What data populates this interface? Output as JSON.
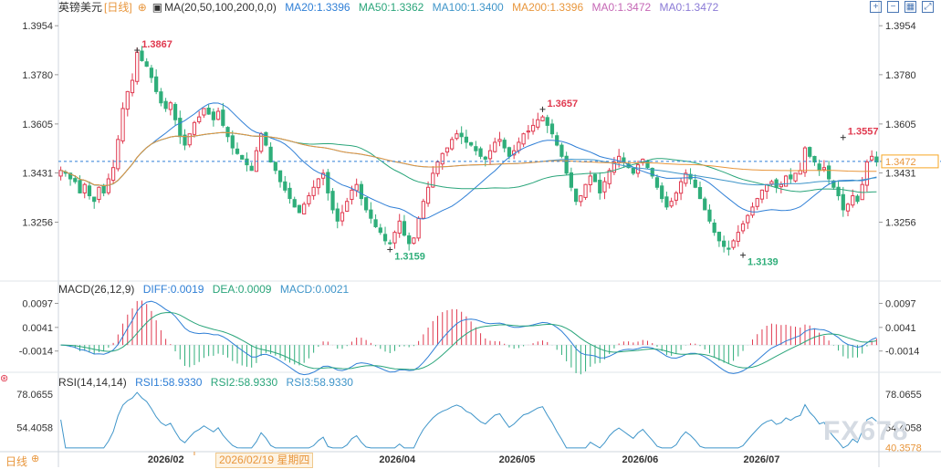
{
  "header": {
    "symbol": "英镑美元",
    "period": "[日线]",
    "ma_label": "MA(20,50,100,200,0,0)",
    "ma_values": [
      {
        "text": "MA20:1.3396",
        "color": "#2f7fd6"
      },
      {
        "text": "MA50:1.3362",
        "color": "#2aa57a"
      },
      {
        "text": "MA100:1.3400",
        "color": "#3f95c9"
      },
      {
        "text": "MA200:1.3396",
        "color": "#e8963c"
      },
      {
        "text": "MA0:1.3472",
        "color": "#c567b5"
      },
      {
        "text": "MA0:1.3472",
        "color": "#8a7ad6"
      }
    ]
  },
  "macd_header": {
    "label": "MACD(26,12,9)",
    "diff": "DIFF:0.0019",
    "dea": "DEA:0.0009",
    "macd": "MACD:0.0021"
  },
  "rsi_header": {
    "label": "RSI(14,14,14)",
    "rsi1": "RSI1:58.9330",
    "rsi2": "RSI2:58.9330",
    "rsi3": "RSI3:58.9330"
  },
  "footer": {
    "period_tab": "日线",
    "crosshair_date": "2026/02/19 星期四",
    "x_labels": [
      "2026/02",
      "2026/04",
      "2026/05",
      "2026/06",
      "2026/07"
    ]
  },
  "watermark": "FX678",
  "colors": {
    "up": "#e0394f",
    "down": "#2fae7a",
    "ma20": "#2f7fd6",
    "ma50": "#2aa57a",
    "ma100": "#3f95c9",
    "ma200": "#e8963c",
    "price_tag": "#f6a623"
  },
  "chart_data": [
    {
      "type": "candlestick",
      "title": "英镑美元 [日线]",
      "y_ticks": [
        1.3954,
        1.378,
        1.3605,
        1.3431,
        1.3256
      ],
      "y_tick_labels": [
        "1.3954",
        "1.3780",
        "1.3605",
        "1.3431",
        "1.3256"
      ],
      "ylim": [
        1.306,
        1.4
      ],
      "last_price": 1.3472,
      "last_price_label": "1.3472",
      "annotations": [
        {
          "label": "1.3867",
          "value": 1.3867,
          "kind": "high"
        },
        {
          "label": "1.3159",
          "value": 1.3159,
          "kind": "low"
        },
        {
          "label": "1.3657",
          "value": 1.3657,
          "kind": "high"
        },
        {
          "label": "1.3139",
          "value": 1.3139,
          "kind": "low"
        },
        {
          "label": "1.3557",
          "value": 1.3557,
          "kind": "high"
        }
      ],
      "close_series": [
        1.344,
        1.343,
        1.341,
        1.34,
        1.336,
        1.339,
        1.335,
        1.333,
        1.338,
        1.336,
        1.341,
        1.345,
        1.355,
        1.366,
        1.372,
        1.376,
        1.386,
        1.383,
        1.381,
        1.377,
        1.372,
        1.368,
        1.366,
        1.368,
        1.362,
        1.356,
        1.353,
        1.357,
        1.361,
        1.363,
        1.366,
        1.364,
        1.362,
        1.365,
        1.36,
        1.356,
        1.352,
        1.35,
        1.348,
        1.346,
        1.344,
        1.351,
        1.357,
        1.353,
        1.347,
        1.344,
        1.34,
        1.337,
        1.334,
        1.331,
        1.329,
        1.332,
        1.335,
        1.338,
        1.341,
        1.343,
        1.336,
        1.33,
        1.326,
        1.329,
        1.333,
        1.337,
        1.339,
        1.334,
        1.33,
        1.327,
        1.324,
        1.322,
        1.319,
        1.318,
        1.322,
        1.326,
        1.321,
        1.318,
        1.32,
        1.327,
        1.333,
        1.338,
        1.343,
        1.347,
        1.35,
        1.352,
        1.355,
        1.357,
        1.356,
        1.354,
        1.353,
        1.351,
        1.349,
        1.348,
        1.351,
        1.354,
        1.355,
        1.352,
        1.349,
        1.351,
        1.354,
        1.357,
        1.358,
        1.36,
        1.362,
        1.363,
        1.36,
        1.357,
        1.353,
        1.349,
        1.343,
        1.338,
        1.333,
        1.335,
        1.339,
        1.342,
        1.34,
        1.336,
        1.34,
        1.344,
        1.347,
        1.349,
        1.347,
        1.345,
        1.343,
        1.346,
        1.348,
        1.345,
        1.342,
        1.338,
        1.334,
        1.331,
        1.333,
        1.336,
        1.34,
        1.343,
        1.341,
        1.338,
        1.334,
        1.33,
        1.326,
        1.322,
        1.319,
        1.317,
        1.316,
        1.319,
        1.322,
        1.325,
        1.328,
        1.331,
        1.334,
        1.337,
        1.339,
        1.34,
        1.338,
        1.339,
        1.342,
        1.341,
        1.343,
        1.344,
        1.352,
        1.349,
        1.347,
        1.344,
        1.345,
        1.341,
        1.338,
        1.335,
        1.33,
        1.332,
        1.335,
        1.333,
        1.339,
        1.347,
        1.349,
        1.347
      ]
    },
    {
      "type": "bar+line",
      "title": "MACD(26,12,9)",
      "y_ticks": [
        0.0097,
        0.0041,
        -0.0014
      ],
      "y_tick_labels": [
        "0.0097",
        "0.0041",
        "-0.0014"
      ],
      "ylim": [
        -0.0055,
        0.0115
      ],
      "series": [
        {
          "name": "DIFF",
          "last": 0.0019
        },
        {
          "name": "DEA",
          "last": 0.0009
        },
        {
          "name": "MACD",
          "last": 0.0021
        }
      ]
    },
    {
      "type": "line",
      "title": "RSI(14,14,14)",
      "y_ticks": [
        78.0655,
        54.4058,
        40.3578
      ],
      "y_tick_labels": [
        "78.0655",
        "54.4058",
        "40.3578"
      ],
      "ylim": [
        38,
        82
      ],
      "series": [
        {
          "name": "RSI1",
          "last": 58.933
        },
        {
          "name": "RSI2",
          "last": 58.933
        },
        {
          "name": "RSI3",
          "last": 58.933
        }
      ]
    }
  ]
}
